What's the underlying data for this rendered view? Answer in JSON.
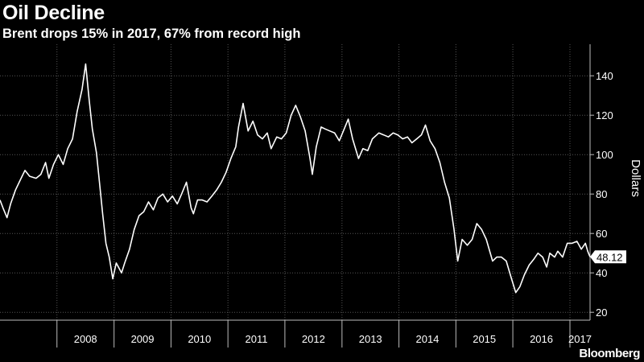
{
  "brand": "Bloomberg",
  "colors": {
    "background": "#000000",
    "line": "#ffffff",
    "grid": "#555555",
    "text": "#ffffff",
    "label_box": "#ffffff",
    "label_text": "#000000"
  },
  "chart_data": {
    "type": "line",
    "title": "Oil Decline",
    "subtitle": "Brent drops 15% in 2017, 67% from record high",
    "ylabel": "Dollars",
    "xlabel": "",
    "ylim": [
      16,
      156
    ],
    "yticks": [
      20,
      40,
      60,
      80,
      100,
      120,
      140
    ],
    "grid": true,
    "y_axis_side": "right",
    "x_range": [
      "2007-01-01",
      "2017-05-10"
    ],
    "xtick_labels": [
      "2008",
      "2009",
      "2010",
      "2011",
      "2012",
      "2013",
      "2014",
      "2015",
      "2016",
      "2017"
    ],
    "last_value_label": "48.12",
    "series": [
      {
        "name": "",
        "x": [
          "2007-01-01",
          "2007-01-20",
          "2007-02-15",
          "2007-03-10",
          "2007-04-10",
          "2007-05-10",
          "2007-06-10",
          "2007-07-10",
          "2007-08-20",
          "2007-09-20",
          "2007-10-20",
          "2007-11-10",
          "2007-12-10",
          "2008-01-10",
          "2008-02-10",
          "2008-03-10",
          "2008-04-10",
          "2008-05-10",
          "2008-06-10",
          "2008-07-03",
          "2008-07-25",
          "2008-08-15",
          "2008-09-10",
          "2008-10-01",
          "2008-10-20",
          "2008-11-10",
          "2008-12-01",
          "2008-12-24",
          "2009-01-15",
          "2009-02-18",
          "2009-03-10",
          "2009-04-10",
          "2009-05-10",
          "2009-06-10",
          "2009-07-10",
          "2009-08-10",
          "2009-09-10",
          "2009-10-10",
          "2009-11-10",
          "2009-12-10",
          "2010-01-10",
          "2010-02-10",
          "2010-03-10",
          "2010-04-10",
          "2010-05-10",
          "2010-05-25",
          "2010-06-20",
          "2010-07-20",
          "2010-08-20",
          "2010-09-20",
          "2010-10-20",
          "2010-11-20",
          "2010-12-20",
          "2011-01-20",
          "2011-02-20",
          "2011-03-10",
          "2011-04-08",
          "2011-05-10",
          "2011-06-10",
          "2011-07-10",
          "2011-08-10",
          "2011-09-10",
          "2011-10-05",
          "2011-11-10",
          "2011-12-10",
          "2012-01-10",
          "2012-02-10",
          "2012-03-10",
          "2012-04-10",
          "2012-05-10",
          "2012-06-10",
          "2012-06-25",
          "2012-07-20",
          "2012-08-20",
          "2012-09-15",
          "2012-10-15",
          "2012-11-15",
          "2012-12-15",
          "2013-01-15",
          "2013-02-10",
          "2013-03-10",
          "2013-04-17",
          "2013-05-15",
          "2013-06-15",
          "2013-07-15",
          "2013-08-25",
          "2013-09-25",
          "2013-10-25",
          "2013-11-25",
          "2013-12-25",
          "2014-01-25",
          "2014-02-25",
          "2014-03-25",
          "2014-04-25",
          "2014-05-25",
          "2014-06-20",
          "2014-07-20",
          "2014-08-20",
          "2014-09-20",
          "2014-10-20",
          "2014-11-20",
          "2014-12-20",
          "2015-01-13",
          "2015-02-10",
          "2015-03-15",
          "2015-04-15",
          "2015-05-15",
          "2015-06-15",
          "2015-07-15",
          "2015-08-24",
          "2015-09-20",
          "2015-10-20",
          "2015-11-20",
          "2015-12-20",
          "2016-01-20",
          "2016-02-15",
          "2016-03-15",
          "2016-04-15",
          "2016-05-15",
          "2016-06-10",
          "2016-07-10",
          "2016-08-05",
          "2016-08-25",
          "2016-09-25",
          "2016-10-15",
          "2016-11-15",
          "2016-12-15",
          "2017-01-15",
          "2017-02-15",
          "2017-03-15",
          "2017-04-10",
          "2017-04-25",
          "2017-05-05",
          "2017-05-10"
        ],
        "y": [
          77,
          73,
          68,
          75,
          82,
          87,
          92,
          89,
          88,
          90,
          96,
          88,
          95,
          100,
          95,
          103,
          108,
          122,
          133,
          146,
          128,
          113,
          101,
          85,
          70,
          55,
          48,
          37,
          45,
          40,
          45,
          52,
          62,
          69,
          71,
          76,
          72,
          78,
          80,
          76,
          79,
          75,
          80,
          86,
          73,
          70,
          77,
          77,
          76,
          79,
          82,
          86,
          91,
          98,
          104,
          114,
          126,
          112,
          117,
          110,
          108,
          111,
          103,
          109,
          108,
          111,
          120,
          125,
          119,
          112,
          98,
          90,
          104,
          114,
          113,
          112,
          111,
          107,
          113,
          118,
          108,
          98,
          103,
          102,
          108,
          111,
          110,
          109,
          111,
          110,
          108,
          109,
          106,
          108,
          110,
          115,
          107,
          103,
          96,
          86,
          78,
          62,
          46,
          57,
          54,
          57,
          65,
          62,
          57,
          46,
          48,
          48,
          46,
          38,
          30,
          33,
          39,
          44,
          47,
          50,
          48,
          43,
          50,
          48,
          51,
          48,
          55,
          55,
          56,
          52,
          55,
          51,
          49,
          48.12
        ]
      }
    ]
  }
}
